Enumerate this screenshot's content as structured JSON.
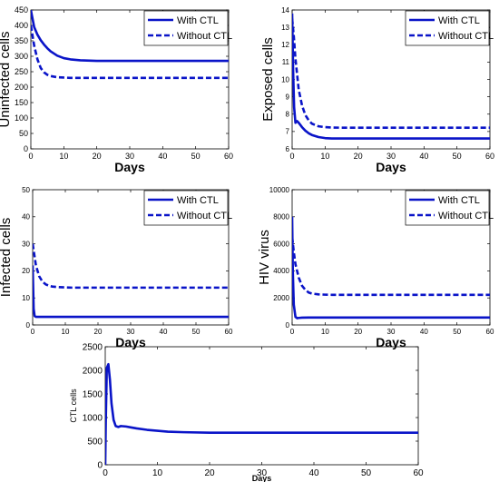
{
  "colors": {
    "series": "#0a14c8",
    "axis": "#000000",
    "background": "#ffffff"
  },
  "chart_data": [
    {
      "type": "line",
      "xlabel": "Days",
      "ylabel": "Uninfected cells",
      "xlim": [
        0,
        60
      ],
      "ylim": [
        0,
        450
      ],
      "xticks": [
        0,
        10,
        20,
        30,
        40,
        50,
        60
      ],
      "yticks": [
        0,
        50,
        100,
        150,
        200,
        250,
        300,
        350,
        400,
        450
      ],
      "legend_position": "top-right",
      "series": [
        {
          "name": "With CTL",
          "style": "solid",
          "x": [
            0,
            1,
            2,
            3,
            4,
            5,
            6,
            8,
            10,
            12,
            15,
            20,
            25,
            30,
            40,
            50,
            60
          ],
          "y": [
            450,
            395,
            370,
            352,
            338,
            326,
            316,
            302,
            294,
            290,
            287,
            285,
            285,
            285,
            285,
            285,
            285
          ]
        },
        {
          "name": "Without CTL",
          "style": "dashed",
          "x": [
            0,
            1,
            2,
            3,
            4,
            5,
            6,
            8,
            10,
            12,
            15,
            20,
            30,
            40,
            50,
            60
          ],
          "y": [
            400,
            335,
            290,
            262,
            248,
            240,
            236,
            232,
            231,
            230,
            230,
            230,
            230,
            230,
            230,
            230
          ]
        }
      ]
    },
    {
      "type": "line",
      "xlabel": "Days",
      "ylabel": "Exposed cells",
      "xlim": [
        0,
        60
      ],
      "ylim": [
        6,
        14
      ],
      "xticks": [
        0,
        10,
        20,
        30,
        40,
        50,
        60
      ],
      "yticks": [
        6,
        7,
        8,
        9,
        10,
        11,
        12,
        13,
        14
      ],
      "legend_position": "top-right",
      "series": [
        {
          "name": "With CTL",
          "style": "solid",
          "x": [
            0,
            0.3,
            0.6,
            1,
            1.5,
            2,
            3,
            4,
            5,
            6,
            8,
            10,
            12,
            15,
            20,
            30,
            40,
            50,
            60
          ],
          "y": [
            13.8,
            10.5,
            8.4,
            7.5,
            7.6,
            7.5,
            7.25,
            7.05,
            6.9,
            6.8,
            6.68,
            6.62,
            6.6,
            6.6,
            6.6,
            6.6,
            6.6,
            6.6,
            6.6
          ]
        },
        {
          "name": "Without CTL",
          "style": "dashed",
          "x": [
            0,
            0.5,
            1,
            2,
            3,
            4,
            5,
            6,
            8,
            10,
            12,
            15,
            20,
            30,
            40,
            50,
            60
          ],
          "y": [
            13.5,
            12.5,
            11.2,
            9.4,
            8.5,
            7.95,
            7.65,
            7.45,
            7.3,
            7.25,
            7.23,
            7.22,
            7.22,
            7.22,
            7.22,
            7.22,
            7.22
          ]
        }
      ]
    },
    {
      "type": "line",
      "xlabel": "Days",
      "ylabel": "Infected cells",
      "xlim": [
        0,
        60
      ],
      "ylim": [
        0,
        50
      ],
      "xticks": [
        0,
        10,
        20,
        30,
        40,
        50,
        60
      ],
      "yticks": [
        0,
        10,
        20,
        30,
        40,
        50
      ],
      "legend_position": "top-right",
      "series": [
        {
          "name": "With CTL",
          "style": "solid",
          "x": [
            0,
            0.3,
            0.6,
            1,
            2,
            3,
            5,
            10,
            20,
            30,
            40,
            50,
            60
          ],
          "y": [
            22,
            6,
            3.3,
            3.0,
            3.0,
            3.0,
            3.0,
            3.0,
            3.0,
            3.0,
            3.0,
            3.0,
            3.0
          ]
        },
        {
          "name": "Without CTL",
          "style": "dashed",
          "x": [
            0,
            0.5,
            1,
            2,
            3,
            4,
            5,
            6,
            8,
            10,
            12,
            15,
            20,
            30,
            40,
            50,
            60
          ],
          "y": [
            30,
            26,
            22,
            18,
            16,
            15,
            14.5,
            14.2,
            14,
            13.9,
            13.8,
            13.8,
            13.8,
            13.8,
            13.8,
            13.8,
            13.8
          ]
        }
      ]
    },
    {
      "type": "line",
      "xlabel": "Days",
      "ylabel": "HIV virus",
      "xlim": [
        0,
        60
      ],
      "ylim": [
        0,
        10000
      ],
      "xticks": [
        0,
        10,
        20,
        30,
        40,
        50,
        60
      ],
      "yticks": [
        0,
        2000,
        4000,
        6000,
        8000,
        10000
      ],
      "legend_position": "top-right",
      "series": [
        {
          "name": "With CTL",
          "style": "solid",
          "x": [
            0,
            0.2,
            0.5,
            1,
            1.5,
            2,
            3,
            5,
            10,
            20,
            30,
            40,
            50,
            60
          ],
          "y": [
            8000,
            4000,
            1500,
            600,
            500,
            520,
            540,
            550,
            550,
            550,
            550,
            550,
            550,
            550
          ]
        },
        {
          "name": "Without CTL",
          "style": "dashed",
          "x": [
            0,
            0.5,
            1,
            2,
            3,
            4,
            5,
            6,
            8,
            10,
            12,
            15,
            20,
            30,
            40,
            50,
            60
          ],
          "y": [
            6500,
            5400,
            4500,
            3500,
            2900,
            2600,
            2400,
            2320,
            2260,
            2240,
            2230,
            2230,
            2230,
            2230,
            2230,
            2230,
            2230
          ]
        }
      ]
    },
    {
      "type": "line",
      "xlabel": "Days",
      "ylabel": "CTL cells",
      "xlim": [
        0,
        60
      ],
      "ylim": [
        0,
        2500
      ],
      "xticks": [
        0,
        10,
        20,
        30,
        40,
        50,
        60
      ],
      "yticks": [
        0,
        500,
        1000,
        1500,
        2000,
        2500
      ],
      "series": [
        {
          "style": "solid",
          "x": [
            0,
            0.1,
            0.3,
            0.6,
            0.9,
            1.2,
            1.6,
            2,
            2.5,
            3,
            4,
            5,
            6,
            8,
            10,
            12,
            15,
            20,
            25,
            30,
            40,
            50,
            60
          ],
          "y": [
            0,
            900,
            2050,
            2130,
            1800,
            1300,
            950,
            820,
            800,
            820,
            810,
            790,
            770,
            740,
            720,
            700,
            690,
            680,
            680,
            680,
            680,
            680,
            680
          ]
        }
      ]
    }
  ]
}
